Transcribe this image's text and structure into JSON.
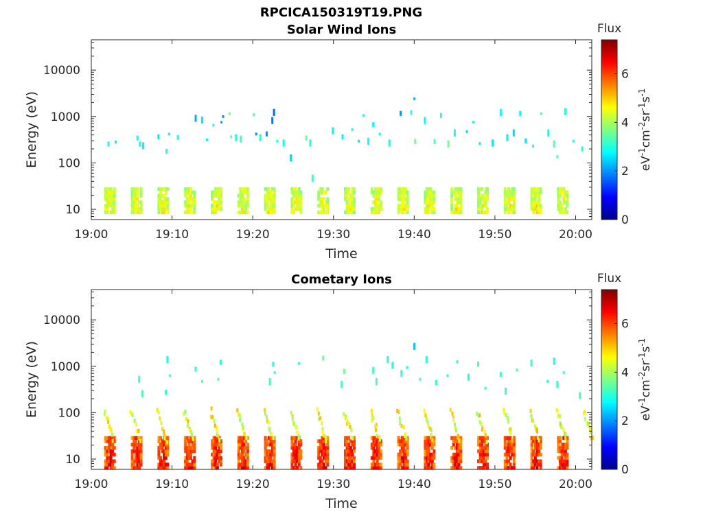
{
  "figure_title": "RPCICA150319T19.PNG",
  "colorbar_colors": [
    "#00008f",
    "#0000ff",
    "#0080ff",
    "#00ffff",
    "#80ff80",
    "#ffff00",
    "#ff8000",
    "#ff0000",
    "#800000"
  ],
  "chart_data": [
    {
      "type": "heatmap",
      "title": "Solar Wind Ions",
      "xlabel": "Time",
      "ylabel": "Energy (eV)",
      "x_ticks": [
        "19:00",
        "19:10",
        "19:20",
        "19:30",
        "19:40",
        "19:50",
        "20:00"
      ],
      "x_range_minutes": [
        0,
        62
      ],
      "y_scale": "log",
      "y_ticks": [
        "10",
        "100",
        "1000",
        "10000"
      ],
      "ylim": [
        6,
        45000
      ],
      "colorbar": {
        "title": "Flux",
        "label": "eV-1cm-2sr-1s-1",
        "range": [
          0,
          7.4
        ],
        "ticks": [
          "0",
          "2",
          "4",
          "6"
        ]
      },
      "low_energy_band": {
        "energy_range": [
          8,
          28
        ],
        "flux_range": [
          3.5,
          5.2
        ],
        "periodicity_min": 3.3
      },
      "scattered_points": [
        {
          "t": 2.0,
          "e": 230,
          "f": 3.0
        },
        {
          "t": 2.9,
          "e": 270,
          "f": 2.6
        },
        {
          "t": 5.6,
          "e": 310,
          "f": 2.8
        },
        {
          "t": 5.9,
          "e": 230,
          "f": 2.9
        },
        {
          "t": 6.3,
          "e": 200,
          "f": 2.7
        },
        {
          "t": 8.2,
          "e": 330,
          "f": 2.6
        },
        {
          "t": 9.2,
          "e": 160,
          "f": 3.0
        },
        {
          "t": 9.5,
          "e": 400,
          "f": 2.7
        },
        {
          "t": 10.6,
          "e": 320,
          "f": 3.0
        },
        {
          "t": 12.8,
          "e": 780,
          "f": 2.2
        },
        {
          "t": 13.6,
          "e": 720,
          "f": 2.6
        },
        {
          "t": 14.2,
          "e": 300,
          "f": 2.8
        },
        {
          "t": 15.0,
          "e": 620,
          "f": 2.9
        },
        {
          "t": 16.0,
          "e": 720,
          "f": 2.2
        },
        {
          "t": 16.2,
          "e": 950,
          "f": 2.0
        },
        {
          "t": 17.0,
          "e": 1100,
          "f": 3.6
        },
        {
          "t": 17.2,
          "e": 350,
          "f": 3.4
        },
        {
          "t": 17.8,
          "e": 300,
          "f": 3.0
        },
        {
          "t": 18.4,
          "e": 280,
          "f": 3.2
        },
        {
          "t": 20.0,
          "e": 1050,
          "f": 3.3
        },
        {
          "t": 20.3,
          "e": 400,
          "f": 2.0
        },
        {
          "t": 20.8,
          "e": 300,
          "f": 3.1
        },
        {
          "t": 21.6,
          "e": 380,
          "f": 2.0
        },
        {
          "t": 22.3,
          "e": 700,
          "f": 1.8
        },
        {
          "t": 22.5,
          "e": 1050,
          "f": 1.7
        },
        {
          "t": 22.9,
          "e": 280,
          "f": 3.0
        },
        {
          "t": 23.7,
          "e": 230,
          "f": 2.8
        },
        {
          "t": 24.6,
          "e": 110,
          "f": 2.5
        },
        {
          "t": 26.5,
          "e": 310,
          "f": 3.6
        },
        {
          "t": 27.0,
          "e": 230,
          "f": 3.0
        },
        {
          "t": 27.3,
          "e": 40,
          "f": 3.3
        },
        {
          "t": 29.8,
          "e": 420,
          "f": 2.7
        },
        {
          "t": 31.0,
          "e": 330,
          "f": 2.7
        },
        {
          "t": 32.2,
          "e": 500,
          "f": 3.0
        },
        {
          "t": 33.0,
          "e": 280,
          "f": 2.6
        },
        {
          "t": 33.6,
          "e": 1000,
          "f": 3.0
        },
        {
          "t": 34.2,
          "e": 250,
          "f": 2.8
        },
        {
          "t": 34.8,
          "e": 600,
          "f": 2.7
        },
        {
          "t": 35.6,
          "e": 400,
          "f": 2.9
        },
        {
          "t": 36.8,
          "e": 230,
          "f": 3.0
        },
        {
          "t": 38.2,
          "e": 1050,
          "f": 2.0
        },
        {
          "t": 39.5,
          "e": 1100,
          "f": 3.2
        },
        {
          "t": 39.9,
          "e": 2300,
          "f": 2.3
        },
        {
          "t": 40.0,
          "e": 260,
          "f": 3.6
        },
        {
          "t": 41.2,
          "e": 700,
          "f": 2.8
        },
        {
          "t": 42.4,
          "e": 260,
          "f": 3.3
        },
        {
          "t": 43.2,
          "e": 950,
          "f": 3.1
        },
        {
          "t": 44.1,
          "e": 220,
          "f": 3.6
        },
        {
          "t": 44.9,
          "e": 380,
          "f": 2.9
        },
        {
          "t": 46.4,
          "e": 450,
          "f": 2.5
        },
        {
          "t": 47.2,
          "e": 720,
          "f": 3.0
        },
        {
          "t": 48.0,
          "e": 250,
          "f": 2.7
        },
        {
          "t": 49.6,
          "e": 230,
          "f": 2.6
        },
        {
          "t": 50.6,
          "e": 1050,
          "f": 2.9
        },
        {
          "t": 51.4,
          "e": 300,
          "f": 2.7
        },
        {
          "t": 52.2,
          "e": 380,
          "f": 2.5
        },
        {
          "t": 53.0,
          "e": 1050,
          "f": 2.8
        },
        {
          "t": 53.7,
          "e": 270,
          "f": 2.6
        },
        {
          "t": 54.6,
          "e": 220,
          "f": 3.0
        },
        {
          "t": 55.6,
          "e": 1100,
          "f": 3.2
        },
        {
          "t": 56.5,
          "e": 380,
          "f": 2.8
        },
        {
          "t": 57.2,
          "e": 220,
          "f": 3.4
        },
        {
          "t": 57.6,
          "e": 130,
          "f": 3.2
        },
        {
          "t": 58.6,
          "e": 1100,
          "f": 3.0
        },
        {
          "t": 59.6,
          "e": 280,
          "f": 3.0
        },
        {
          "t": 60.7,
          "e": 180,
          "f": 3.0
        }
      ]
    },
    {
      "type": "heatmap",
      "title": "Cometary Ions",
      "xlabel": "Time",
      "ylabel": "Energy (eV)",
      "x_ticks": [
        "19:00",
        "19:10",
        "19:20",
        "19:30",
        "19:40",
        "19:50",
        "20:00"
      ],
      "x_range_minutes": [
        0,
        62
      ],
      "y_scale": "log",
      "y_ticks": [
        "10",
        "100",
        "1000",
        "10000"
      ],
      "ylim": [
        6,
        45000
      ],
      "colorbar": {
        "title": "Flux",
        "label": "eV-1cm-2sr-1s-1",
        "range": [
          0,
          7.4
        ],
        "ticks": [
          "0",
          "2",
          "4",
          "6"
        ]
      },
      "low_energy_band": {
        "energy_range": [
          6,
          30
        ],
        "flux_range": [
          5.0,
          7.2
        ],
        "periodicity_min": 3.3
      },
      "mid_energy_band": {
        "energy_range": [
          25,
          100
        ],
        "flux_range": [
          3.8,
          5.2
        ]
      },
      "scattered_points": [
        {
          "t": 5.8,
          "e": 450,
          "f": 3.2
        },
        {
          "t": 6.2,
          "e": 220,
          "f": 3.3
        },
        {
          "t": 9.3,
          "e": 1200,
          "f": 3.0
        },
        {
          "t": 9.6,
          "e": 600,
          "f": 3.4
        },
        {
          "t": 9.1,
          "e": 250,
          "f": 3.2
        },
        {
          "t": 12.8,
          "e": 780,
          "f": 3.0
        },
        {
          "t": 13.6,
          "e": 450,
          "f": 3.4
        },
        {
          "t": 15.9,
          "e": 1100,
          "f": 3.0
        },
        {
          "t": 15.6,
          "e": 500,
          "f": 3.3
        },
        {
          "t": 22.4,
          "e": 1000,
          "f": 3.0
        },
        {
          "t": 22.6,
          "e": 700,
          "f": 3.1
        },
        {
          "t": 22.0,
          "e": 400,
          "f": 3.2
        },
        {
          "t": 25.6,
          "e": 1100,
          "f": 3.2
        },
        {
          "t": 28.6,
          "e": 1350,
          "f": 3.5
        },
        {
          "t": 31.2,
          "e": 700,
          "f": 3.6
        },
        {
          "t": 30.9,
          "e": 350,
          "f": 3.2
        },
        {
          "t": 34.8,
          "e": 700,
          "f": 3.2
        },
        {
          "t": 35.2,
          "e": 400,
          "f": 3.3
        },
        {
          "t": 36.6,
          "e": 1200,
          "f": 3.1
        },
        {
          "t": 37.2,
          "e": 900,
          "f": 3.0
        },
        {
          "t": 38.3,
          "e": 600,
          "f": 3.1
        },
        {
          "t": 39.0,
          "e": 900,
          "f": 2.8
        },
        {
          "t": 39.9,
          "e": 2300,
          "f": 2.4
        },
        {
          "t": 40.6,
          "e": 500,
          "f": 3.2
        },
        {
          "t": 41.4,
          "e": 1200,
          "f": 3.0
        },
        {
          "t": 42.6,
          "e": 400,
          "f": 3.1
        },
        {
          "t": 44.0,
          "e": 600,
          "f": 3.2
        },
        {
          "t": 45.2,
          "e": 1200,
          "f": 3.1
        },
        {
          "t": 46.6,
          "e": 500,
          "f": 3.0
        },
        {
          "t": 47.8,
          "e": 1000,
          "f": 3.2
        },
        {
          "t": 48.7,
          "e": 320,
          "f": 3.1
        },
        {
          "t": 50.6,
          "e": 600,
          "f": 3.2
        },
        {
          "t": 51.2,
          "e": 250,
          "f": 3.2
        },
        {
          "t": 52.6,
          "e": 800,
          "f": 3.2
        },
        {
          "t": 54.4,
          "e": 1000,
          "f": 3.2
        },
        {
          "t": 56.4,
          "e": 450,
          "f": 3.1
        },
        {
          "t": 57.2,
          "e": 1100,
          "f": 3.0
        },
        {
          "t": 57.6,
          "e": 350,
          "f": 3.1
        },
        {
          "t": 58.4,
          "e": 700,
          "f": 3.2
        },
        {
          "t": 60.4,
          "e": 200,
          "f": 3.3
        }
      ]
    }
  ]
}
